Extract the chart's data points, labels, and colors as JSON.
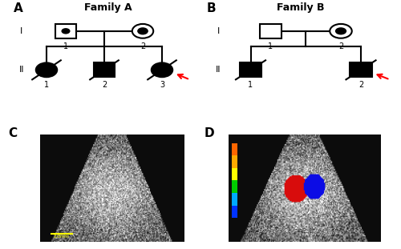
{
  "title_A": "Family A",
  "title_B": "Family B",
  "label_A": "A",
  "label_B": "B",
  "label_C": "C",
  "label_D": "D",
  "bg_color": "#ffffff",
  "line_color": "#000000",
  "fill_color": "#000000",
  "roman_I": "I",
  "roman_II": "II",
  "symbol_size": 0.55,
  "font_title": 9,
  "font_roman": 8,
  "font_num": 7,
  "font_label": 11
}
